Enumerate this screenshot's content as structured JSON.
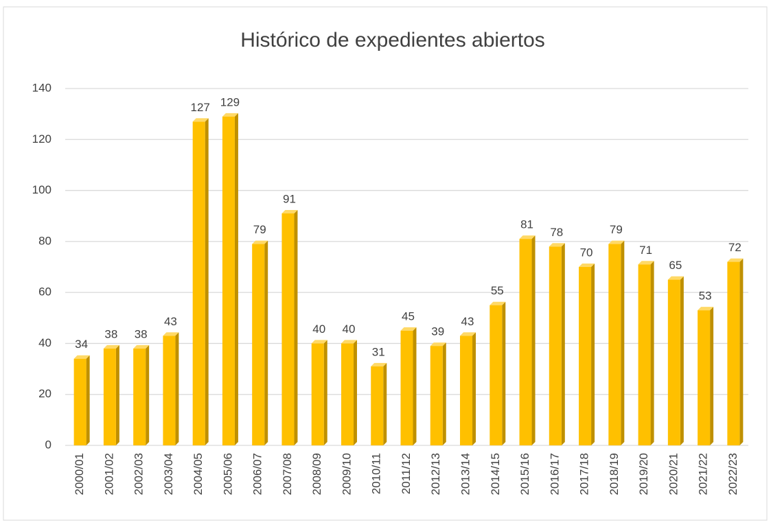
{
  "chart_data": {
    "type": "bar",
    "title": "Histórico de expedientes abiertos",
    "categories": [
      "2000/01",
      "2001/02",
      "2002/03",
      "2003/04",
      "2004/05",
      "2005/06",
      "2006/07",
      "2007/08",
      "2008/09",
      "2009/10",
      "2010/11",
      "2011/12",
      "2012/13",
      "2013/14",
      "2014/15",
      "2015/16",
      "2016/17",
      "2017/18",
      "2018/19",
      "2019/20",
      "2020/21",
      "2021/22",
      "2022/23"
    ],
    "values": [
      34,
      38,
      38,
      43,
      127,
      129,
      79,
      91,
      40,
      40,
      31,
      45,
      39,
      43,
      55,
      81,
      78,
      70,
      79,
      71,
      65,
      53,
      72
    ],
    "color": "#ffc000",
    "ylim": [
      0,
      140
    ],
    "yticks": [
      0,
      20,
      40,
      60,
      80,
      100,
      120,
      140
    ],
    "grid": true
  }
}
